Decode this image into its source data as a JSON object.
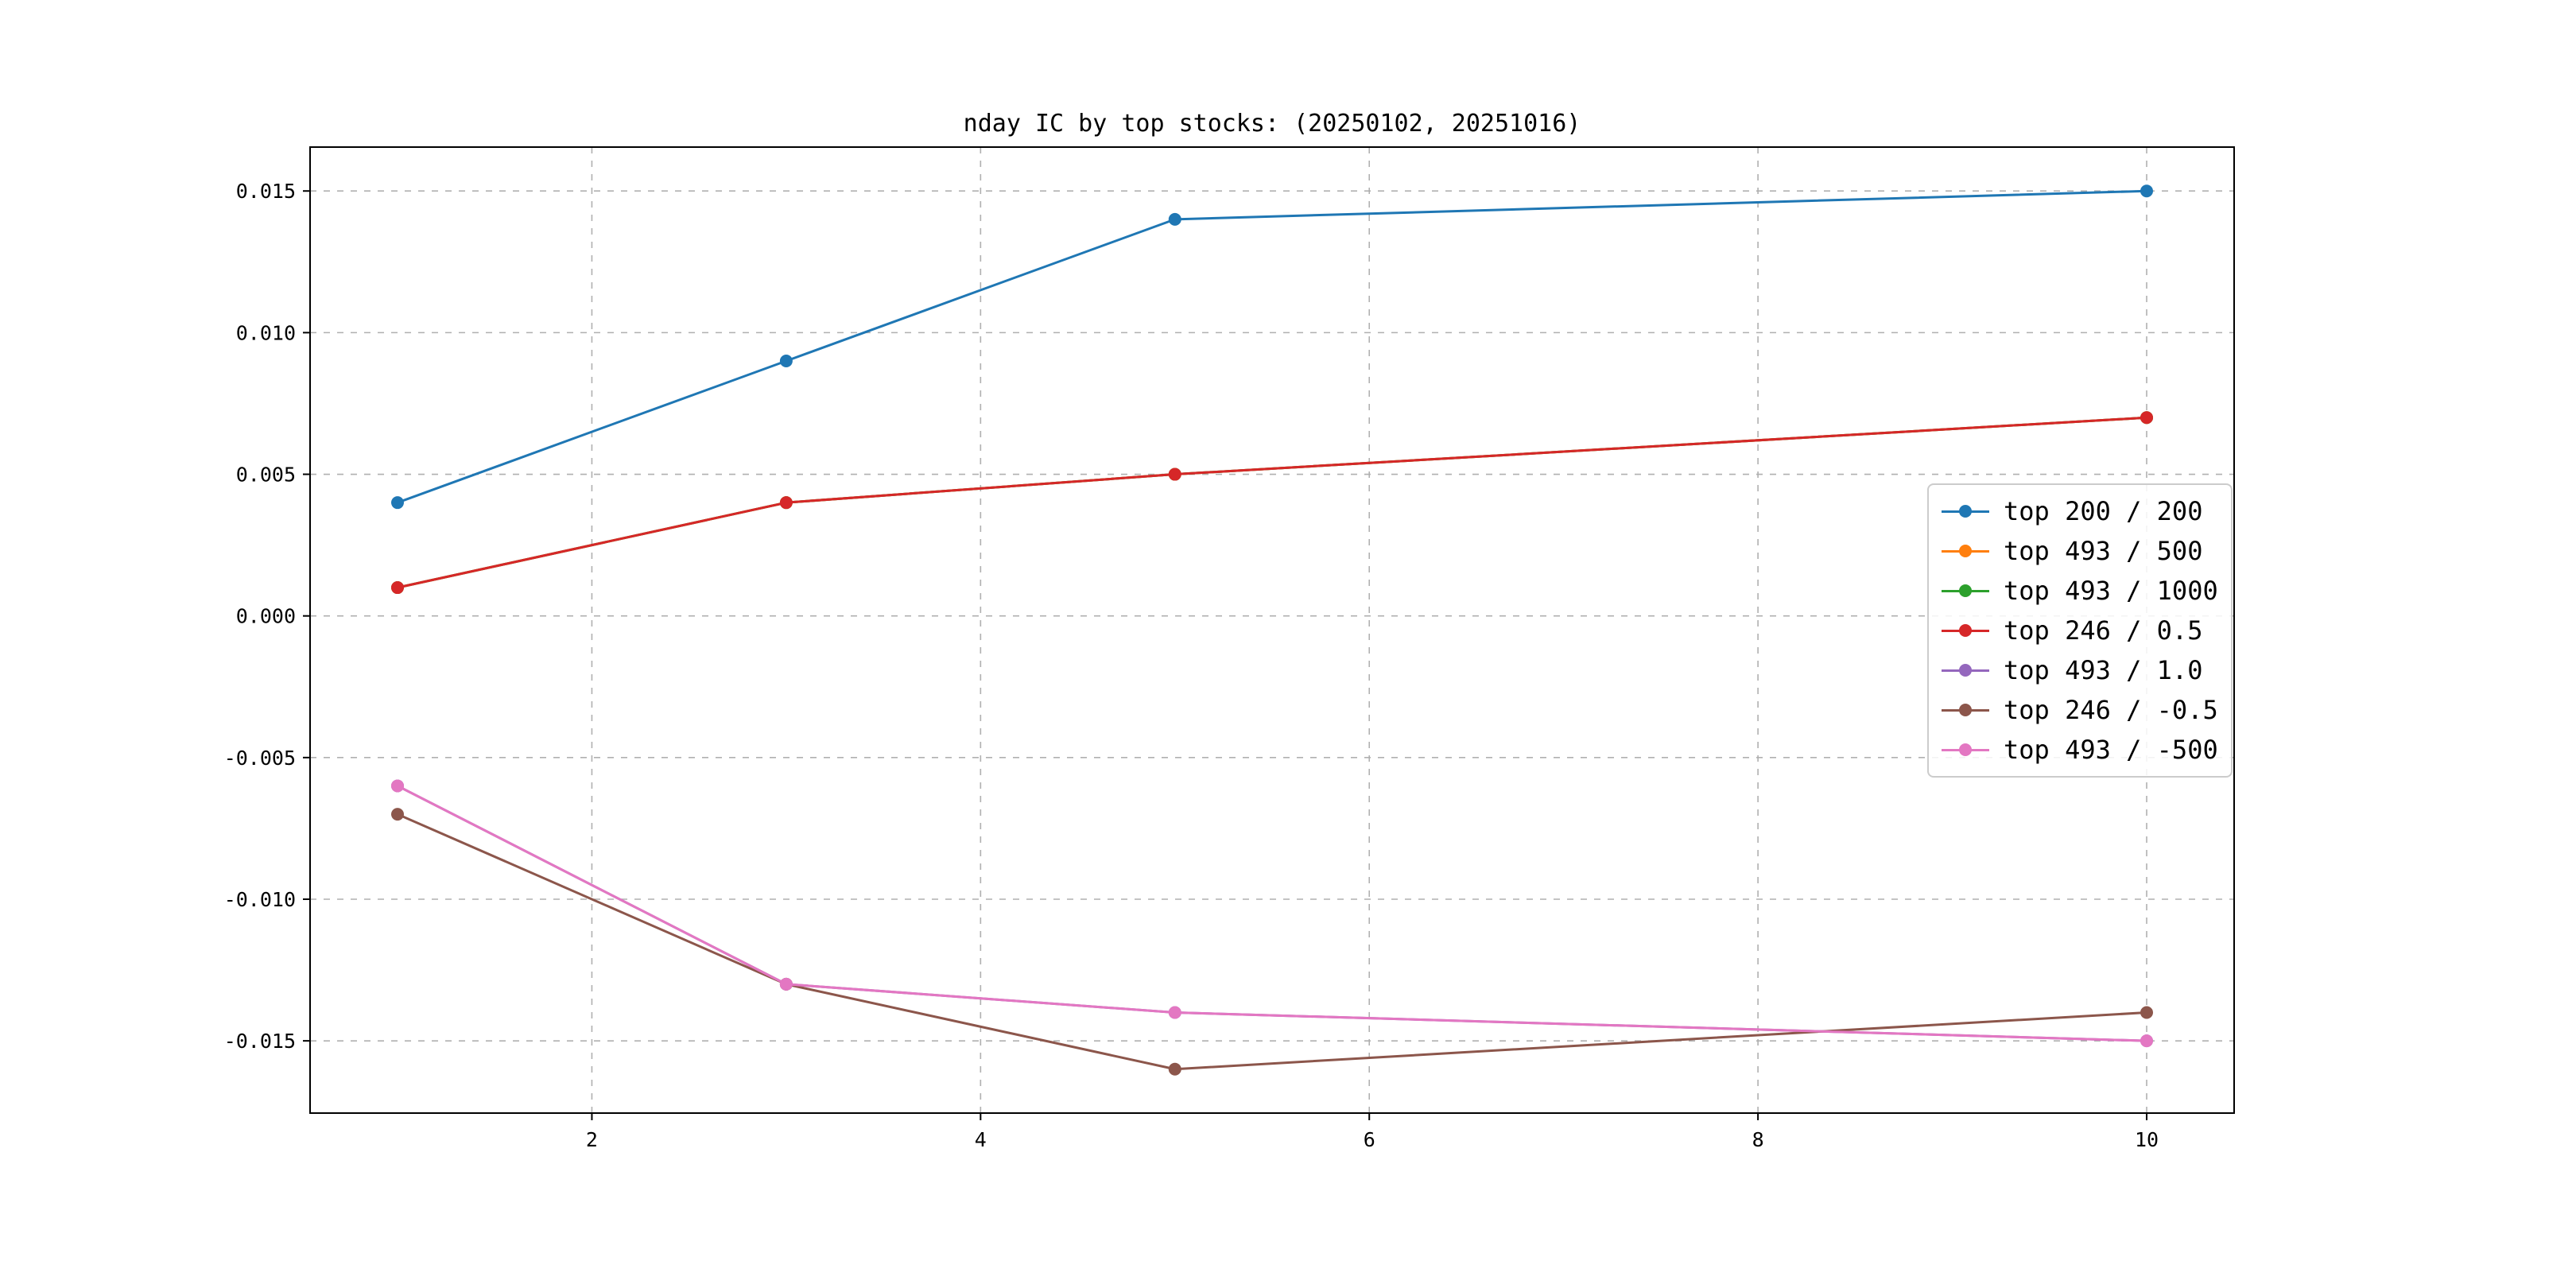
{
  "figure": {
    "background": "#ffffff"
  },
  "chart_data": {
    "type": "line",
    "title": "nday IC by top stocks: (20250102, 20251016)",
    "xlabel": "",
    "ylabel": "",
    "x": [
      1,
      3,
      5,
      10
    ],
    "xlim": [
      0.55,
      10.45
    ],
    "ylim": [
      -0.01755,
      0.01655
    ],
    "x_ticks": [
      2,
      4,
      6,
      8,
      10
    ],
    "x_tick_labels": [
      "2",
      "4",
      "6",
      "8",
      "10"
    ],
    "y_ticks": [
      0.015,
      0.01,
      0.005,
      0,
      -0.005,
      -0.01,
      -0.015
    ],
    "y_tick_labels": [
      "0.015",
      "0.010",
      "0.005",
      "0.000",
      "-0.005",
      "-0.010",
      "-0.015"
    ],
    "grid": {
      "visible": true,
      "style": "dashed",
      "color": "#b0b0b0"
    },
    "marker": "o",
    "legend": {
      "position": "center right",
      "border_color": "#cccccc",
      "background": "#ffffff"
    },
    "series": [
      {
        "name": "top 200 / 200",
        "color": "#1f77b4",
        "values": [
          0.004,
          0.009,
          0.014,
          0.015
        ]
      },
      {
        "name": "top 493 / 500",
        "color": "#ff7f0e",
        "values": [
          0.001,
          0.004,
          0.005,
          0.007
        ],
        "occluded_by": "top 246 / 0.5"
      },
      {
        "name": "top 493 / 1000",
        "color": "#2ca02c",
        "values": [
          0.001,
          0.004,
          0.005,
          0.007
        ],
        "occluded_by": "top 246 / 0.5"
      },
      {
        "name": "top 246 / 0.5",
        "color": "#d62728",
        "values": [
          0.001,
          0.004,
          0.005,
          0.007
        ]
      },
      {
        "name": "top 493 / 1.0",
        "color": "#9467bd",
        "values": [
          -0.006,
          -0.013,
          -0.014,
          -0.015
        ],
        "occluded_by": "top 493 / -500"
      },
      {
        "name": "top 246 / -0.5",
        "color": "#8c564b",
        "values": [
          -0.007,
          -0.013,
          -0.016,
          -0.014
        ]
      },
      {
        "name": "top 493 / -500",
        "color": "#e377c2",
        "values": [
          -0.006,
          -0.013,
          -0.014,
          -0.015
        ]
      }
    ]
  }
}
